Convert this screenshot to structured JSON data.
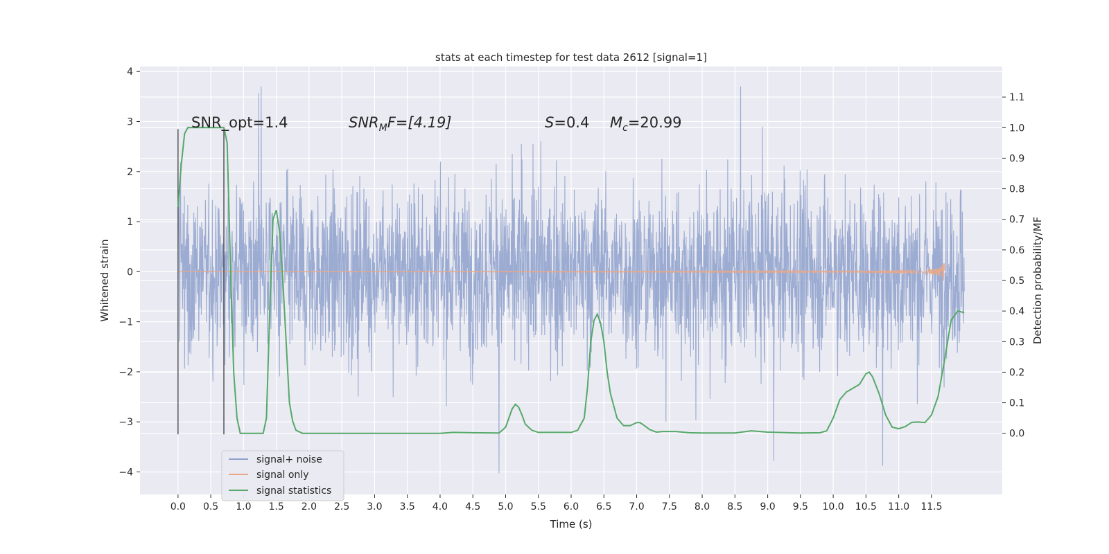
{
  "chart_data": {
    "type": "line",
    "title": "stats at each timestep for test data 2612 [signal=1]",
    "xlabel": "Time (s)",
    "ylabel": "Whitened strain",
    "ylabel_right": "Detection probability/MF",
    "xlim": [
      -0.58,
      12.58
    ],
    "ylim": [
      -4.45,
      4.1
    ],
    "ylim_right": [
      -0.2,
      1.2
    ],
    "xticks": [
      "0.0",
      "0.5",
      "1.0",
      "1.5",
      "2.0",
      "2.5",
      "3.0",
      "3.5",
      "4.0",
      "4.5",
      "5.0",
      "5.5",
      "6.0",
      "6.5",
      "7.0",
      "7.5",
      "8.0",
      "8.5",
      "9.0",
      "9.5",
      "10.0",
      "10.5",
      "11.0",
      "11.5"
    ],
    "yticks": [
      "4",
      "3",
      "2",
      "1",
      "0",
      "−1",
      "−2",
      "−3",
      "−4"
    ],
    "yticks_right": [
      "1.1",
      "1.0",
      "0.9",
      "0.8",
      "0.7",
      "0.6",
      "0.5",
      "0.4",
      "0.3",
      "0.2",
      "0.1",
      "0.0"
    ],
    "grid": true,
    "legend_position": "lower-left",
    "annotations": {
      "snr_opt": "SNR_opt=1.4",
      "snr_mf_main": "SNR",
      "snr_mf_sub": "M",
      "snr_mf_rest": "F=[4.19]",
      "s_main": "S",
      "s_rest": "=0.4",
      "mc_main": "M",
      "mc_sub": "c",
      "mc_rest": "=20.99"
    },
    "vlines_x": [
      0.0,
      0.7
    ],
    "series": [
      {
        "name": "signal+ noise",
        "color": "#8da0cb",
        "description_range": [
          -4.1,
          3.7
        ],
        "x_range": [
          0.0,
          12.0
        ]
      },
      {
        "name": "signal only",
        "color": "#e8a98a",
        "x_range": [
          0.0,
          11.7
        ],
        "peak_amplitude": 0.28
      },
      {
        "name": "signal statistics",
        "color": "#55a868",
        "axis": "right",
        "x": [
          0.0,
          0.05,
          0.1,
          0.15,
          0.2,
          0.3,
          0.4,
          0.5,
          0.6,
          0.65,
          0.7,
          0.75,
          0.8,
          0.85,
          0.9,
          0.95,
          1.0,
          1.1,
          1.2,
          1.3,
          1.35,
          1.4,
          1.45,
          1.5,
          1.55,
          1.6,
          1.65,
          1.7,
          1.75,
          1.8,
          1.9,
          2.0,
          2.5,
          3.0,
          3.5,
          4.0,
          4.2,
          4.5,
          4.9,
          5.0,
          5.05,
          5.1,
          5.15,
          5.2,
          5.25,
          5.3,
          5.4,
          5.5,
          6.0,
          6.1,
          6.2,
          6.25,
          6.3,
          6.35,
          6.4,
          6.45,
          6.5,
          6.55,
          6.6,
          6.7,
          6.8,
          6.9,
          7.0,
          7.05,
          7.1,
          7.2,
          7.3,
          7.4,
          7.6,
          7.8,
          8.0,
          8.5,
          8.75,
          9.0,
          9.5,
          9.8,
          9.9,
          10.0,
          10.1,
          10.2,
          10.4,
          10.5,
          10.55,
          10.6,
          10.7,
          10.8,
          10.9,
          11.0,
          11.1,
          11.2,
          11.3,
          11.4,
          11.5,
          11.6,
          11.7,
          11.8,
          11.9,
          12.0
        ],
        "values": [
          0.74,
          0.88,
          0.98,
          1.0,
          1.0,
          1.0,
          1.0,
          1.0,
          1.0,
          1.0,
          1.0,
          0.95,
          0.55,
          0.2,
          0.05,
          0.0,
          0.0,
          0.0,
          0.0,
          0.0,
          0.05,
          0.4,
          0.7,
          0.73,
          0.66,
          0.5,
          0.3,
          0.1,
          0.04,
          0.01,
          0.0,
          0.0,
          0.0,
          0.0,
          0.0,
          0.0,
          0.003,
          0.002,
          0.001,
          0.02,
          0.05,
          0.08,
          0.095,
          0.085,
          0.06,
          0.03,
          0.01,
          0.003,
          0.003,
          0.01,
          0.05,
          0.15,
          0.3,
          0.37,
          0.39,
          0.36,
          0.3,
          0.2,
          0.13,
          0.05,
          0.025,
          0.025,
          0.035,
          0.035,
          0.028,
          0.012,
          0.004,
          0.006,
          0.006,
          0.002,
          0.001,
          0.001,
          0.008,
          0.004,
          0.001,
          0.002,
          0.008,
          0.05,
          0.11,
          0.135,
          0.16,
          0.195,
          0.2,
          0.185,
          0.13,
          0.06,
          0.02,
          0.015,
          0.022,
          0.036,
          0.037,
          0.035,
          0.06,
          0.12,
          0.24,
          0.37,
          0.4,
          0.395
        ]
      }
    ]
  }
}
